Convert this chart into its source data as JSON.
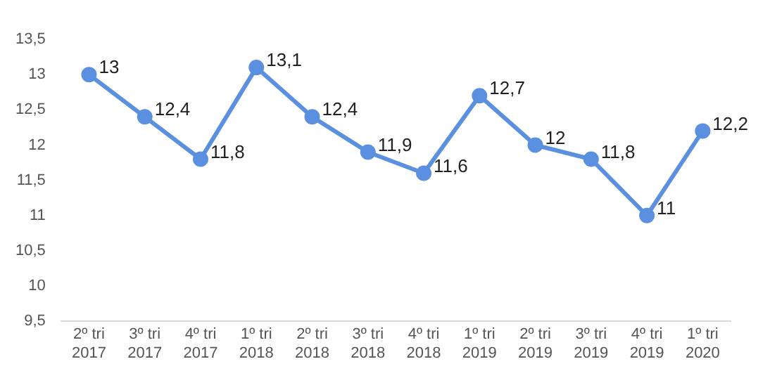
{
  "chart_data": {
    "type": "line",
    "categories": [
      "2º tri 2017",
      "3º tri 2017",
      "4º tri 2017",
      "1º tri 2018",
      "2º tri 2018",
      "3º tri 2018",
      "4º tri 2018",
      "1º tri 2019",
      "2º tri 2019",
      "3º tri 2019",
      "4º tri 2019",
      "1º tri 2020"
    ],
    "series": [
      {
        "color": "#5b8fe0",
        "values": [
          13,
          12.4,
          11.8,
          13.1,
          12.4,
          11.9,
          11.6,
          12.7,
          12,
          11.8,
          11,
          12.2
        ],
        "value_labels": [
          "13",
          "12,4",
          "11,8",
          "13,1",
          "12,4",
          "11,9",
          "11,6",
          "12,7",
          "12",
          "11,8",
          "11",
          "12,2"
        ]
      }
    ],
    "ylim": [
      9.5,
      13.5
    ],
    "yticks": [
      {
        "value": 9.5,
        "label": "9,5"
      },
      {
        "value": 10,
        "label": "10"
      },
      {
        "value": 10.5,
        "label": "10,5"
      },
      {
        "value": 11,
        "label": "11"
      },
      {
        "value": 11.5,
        "label": "11,5"
      },
      {
        "value": 12,
        "label": "12"
      },
      {
        "value": 12.5,
        "label": "12,5"
      },
      {
        "value": 13,
        "label": "13"
      },
      {
        "value": 13.5,
        "label": "13,5"
      }
    ],
    "grid": false,
    "legend": false,
    "marker": "circle",
    "line_style": "solid"
  }
}
